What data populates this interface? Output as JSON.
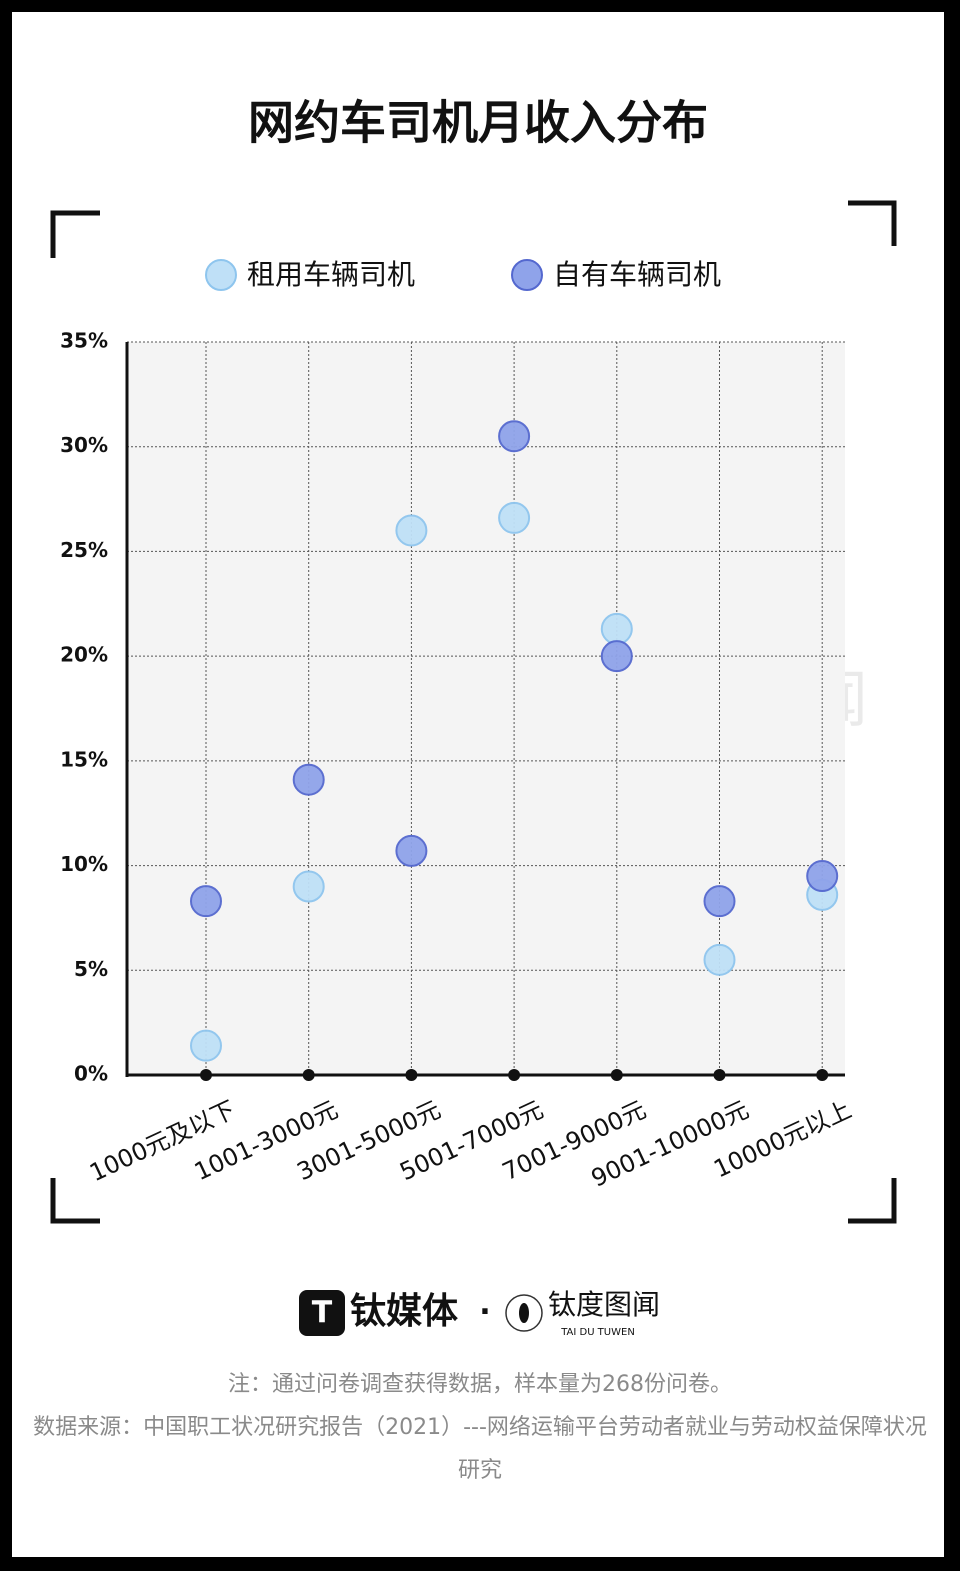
{
  "chart_data": {
    "type": "dot",
    "title": "网约车司机月收入分布",
    "categories": [
      "1000元及以下",
      "1001-3000元",
      "3001-5000元",
      "5001-7000元",
      "7001-9000元",
      "9001-10000元",
      "10000元以上"
    ],
    "series": [
      {
        "name": "租用车辆司机",
        "color": "#bfe0f7",
        "values": [
          1.4,
          9.0,
          26.0,
          26.6,
          21.3,
          5.5,
          8.6
        ]
      },
      {
        "name": "自有车辆司机",
        "color": "#8fa3ea",
        "values": [
          8.3,
          14.1,
          10.7,
          30.5,
          20.0,
          8.3,
          9.5
        ]
      }
    ],
    "ylim": [
      0,
      35
    ],
    "yticks": [
      {
        "value": 0,
        "label": "0%"
      },
      {
        "value": 5,
        "label": "5%"
      },
      {
        "value": 10,
        "label": "10%"
      },
      {
        "value": 15,
        "label": "15%"
      },
      {
        "value": 20,
        "label": "20%"
      },
      {
        "value": 25,
        "label": "25%"
      },
      {
        "value": 30,
        "label": "30%"
      },
      {
        "value": 35,
        "label": "35%"
      }
    ],
    "grid": true
  },
  "branding": {
    "logo1": "钛媒体",
    "separator": "·",
    "logo2": "钛度图闻",
    "logo2_sub": "TAI DU TUWEN"
  },
  "notes": {
    "note": "注：通过问卷调查获得数据，样本量为268份问卷。",
    "source": "数据来源：中国职工状况研究报告（2021）---网络运输平台劳动者就业与劳动权益保障状况研究"
  }
}
